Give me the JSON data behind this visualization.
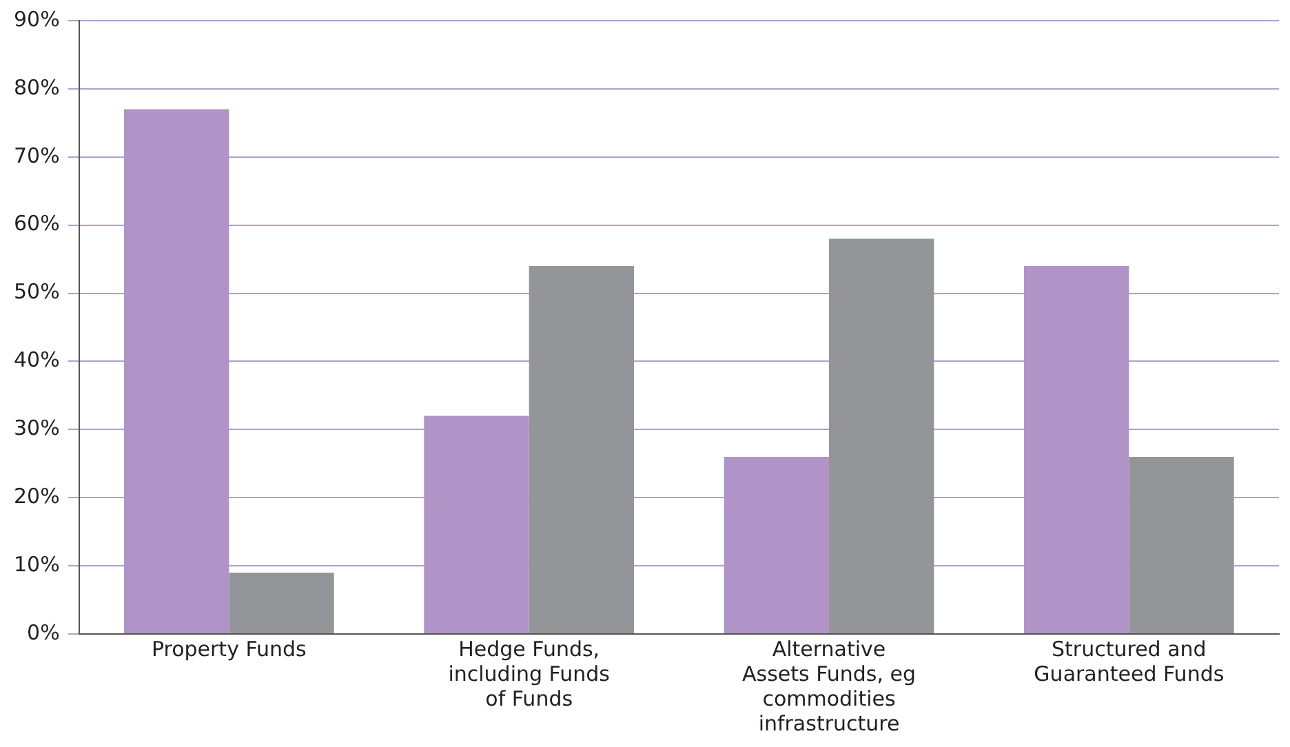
{
  "chart_data": {
    "type": "bar",
    "categories": [
      "Property Funds",
      "Hedge Funds, including Funds of Funds",
      "Alternative Assets Funds, eg commodities infrastructure",
      "Structured and Guaranteed Funds"
    ],
    "series": [
      {
        "color": "#b094c8",
        "values": [
          77,
          32,
          26,
          54
        ]
      },
      {
        "color": "#939598",
        "values": [
          9,
          54,
          58,
          26
        ]
      }
    ],
    "ylim": [
      0,
      90
    ],
    "yticks": [
      {
        "value": 0,
        "label": "0%"
      },
      {
        "value": 10,
        "label": "10%"
      },
      {
        "value": 20,
        "label": "20%"
      },
      {
        "value": 30,
        "label": "30%"
      },
      {
        "value": 40,
        "label": "40%"
      },
      {
        "value": 50,
        "label": "50%"
      },
      {
        "value": 60,
        "label": "60%"
      },
      {
        "value": 70,
        "label": "70%"
      },
      {
        "value": 80,
        "label": "80%"
      },
      {
        "value": 90,
        "label": "90%"
      }
    ],
    "grid": "y",
    "legend": false
  }
}
